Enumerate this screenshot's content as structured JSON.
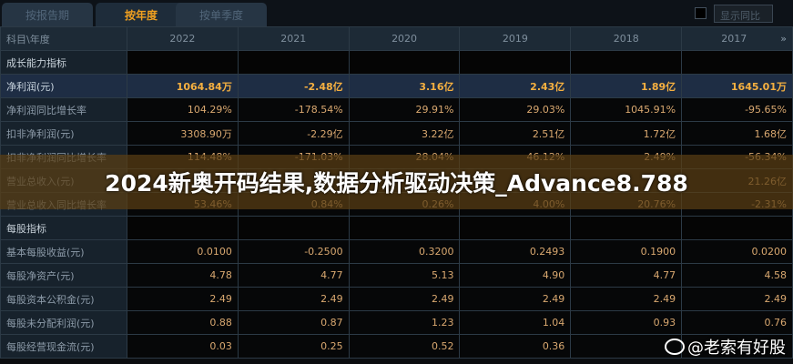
{
  "tabs": [
    {
      "label": "按报告期"
    },
    {
      "label": "按年度",
      "active": true
    },
    {
      "label": "按单季度"
    }
  ],
  "toggle_label": "显示同比",
  "table": {
    "header_label": "科目\\年度",
    "years": [
      "2022",
      "2021",
      "2020",
      "2019",
      "2018",
      "2017"
    ],
    "more_icon": "»",
    "rows": [
      {
        "label": "成长能力指标",
        "section": true,
        "values": [
          "",
          "",
          "",
          "",
          "",
          ""
        ]
      },
      {
        "label": "净利润(元)",
        "highlight": true,
        "values": [
          "1064.84万",
          "-2.48亿",
          "3.16亿",
          "2.43亿",
          "1.89亿",
          "1645.01万"
        ]
      },
      {
        "label": "净利润同比增长率",
        "values": [
          "104.29%",
          "-178.54%",
          "29.91%",
          "29.03%",
          "1045.91%",
          "-95.65%"
        ]
      },
      {
        "label": "扣非净利润(元)",
        "values": [
          "3308.90万",
          "-2.29亿",
          "3.22亿",
          "2.51亿",
          "1.72亿",
          "1.68亿"
        ]
      },
      {
        "label": "扣非净利润同比增长率",
        "values": [
          "114.48%",
          "-171.03%",
          "28.04%",
          "46.12%",
          "2.49%",
          "-56.34%"
        ]
      },
      {
        "label": "营业总收入(元)",
        "values": [
          "",
          "",
          "",
          "",
          "",
          "21.26亿"
        ]
      },
      {
        "label": "营业总收入同比增长率",
        "values": [
          "53.46%",
          "0.84%",
          "0.26%",
          "4.00%",
          "20.76%",
          "-2.31%"
        ]
      },
      {
        "label": "每股指标",
        "section": true,
        "values": [
          "",
          "",
          "",
          "",
          "",
          ""
        ]
      },
      {
        "label": "基本每股收益(元)",
        "values": [
          "0.0100",
          "-0.2500",
          "0.3200",
          "0.2493",
          "0.1900",
          "0.0200"
        ]
      },
      {
        "label": "每股净资产(元)",
        "values": [
          "4.78",
          "4.77",
          "5.13",
          "4.90",
          "4.77",
          "4.58"
        ]
      },
      {
        "label": "每股资本公积金(元)",
        "values": [
          "2.49",
          "2.49",
          "2.49",
          "2.49",
          "2.49",
          "2.49"
        ]
      },
      {
        "label": "每股未分配利润(元)",
        "values": [
          "0.88",
          "0.87",
          "1.23",
          "1.04",
          "0.93",
          "0.76"
        ]
      },
      {
        "label": "每股经营现金流(元)",
        "values": [
          "0.03",
          "0.25",
          "0.52",
          "0.36",
          "",
          ""
        ]
      }
    ]
  },
  "banner_title": "2024新奥开码结果,数据分析驱动决策_Advance8.788",
  "watermark": "@老索有好股"
}
